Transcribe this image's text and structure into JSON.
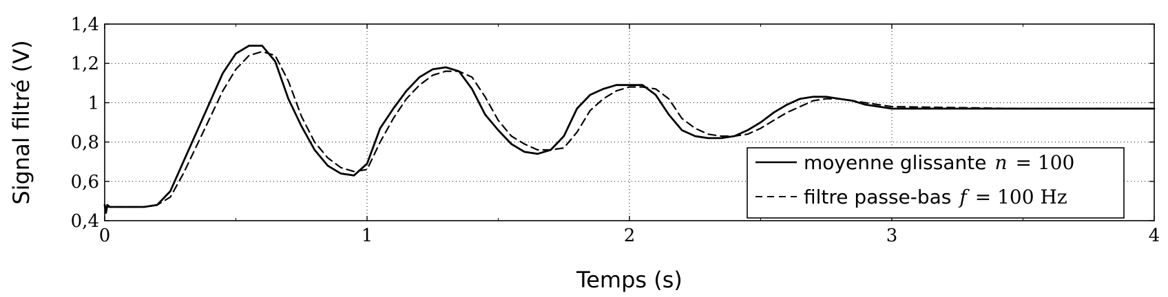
{
  "chart_data": {
    "type": "line",
    "xlabel": "Temps (s)",
    "ylabel": "Signal filtré (V)",
    "xlim": [
      0,
      4
    ],
    "ylim": [
      0.4,
      1.4
    ],
    "xticks": [
      0,
      1,
      2,
      3,
      4
    ],
    "yticks": [
      0.4,
      0.6,
      0.8,
      1.0,
      1.2,
      1.4
    ],
    "xtick_labels": [
      "0",
      "1",
      "2",
      "3",
      "4"
    ],
    "ytick_labels": [
      "0,4",
      "0,6",
      "0,8",
      "1",
      "1,2",
      "1,4"
    ],
    "grid": true,
    "legend_position": "bottom-right",
    "series": [
      {
        "name": "moyenne glissante n = 100",
        "legend_text": "moyenne glissante",
        "legend_var": "n",
        "legend_value": "= 100",
        "style": "solid",
        "color": "#000000",
        "x": [
          0,
          0.005,
          0.01,
          0.02,
          0.05,
          0.1,
          0.15,
          0.2,
          0.25,
          0.3,
          0.35,
          0.4,
          0.45,
          0.5,
          0.55,
          0.6,
          0.65,
          0.7,
          0.75,
          0.8,
          0.85,
          0.9,
          0.95,
          1.0,
          1.05,
          1.1,
          1.15,
          1.2,
          1.25,
          1.3,
          1.35,
          1.4,
          1.45,
          1.5,
          1.55,
          1.6,
          1.65,
          1.7,
          1.75,
          1.8,
          1.85,
          1.9,
          1.95,
          2.0,
          2.05,
          2.1,
          2.15,
          2.2,
          2.25,
          2.3,
          2.35,
          2.4,
          2.45,
          2.5,
          2.55,
          2.6,
          2.65,
          2.7,
          2.75,
          2.8,
          2.85,
          2.9,
          2.95,
          3.0,
          3.5,
          4.0
        ],
        "y": [
          0.48,
          0.44,
          0.48,
          0.47,
          0.47,
          0.47,
          0.47,
          0.48,
          0.55,
          0.7,
          0.85,
          1.0,
          1.15,
          1.25,
          1.29,
          1.29,
          1.21,
          1.02,
          0.88,
          0.76,
          0.68,
          0.64,
          0.63,
          0.69,
          0.87,
          0.97,
          1.06,
          1.13,
          1.17,
          1.18,
          1.16,
          1.07,
          0.94,
          0.86,
          0.79,
          0.75,
          0.74,
          0.76,
          0.83,
          0.97,
          1.04,
          1.07,
          1.09,
          1.09,
          1.09,
          1.04,
          0.94,
          0.86,
          0.83,
          0.82,
          0.82,
          0.83,
          0.86,
          0.9,
          0.95,
          0.99,
          1.02,
          1.03,
          1.03,
          1.02,
          1.01,
          0.99,
          0.98,
          0.97,
          0.97,
          0.97
        ]
      },
      {
        "name": "filtre passe-bas f = 100 Hz",
        "legend_text": "filtre passe-bas",
        "legend_var": "f",
        "legend_value": "= 100 Hz",
        "style": "dashed",
        "color": "#000000",
        "x": [
          0,
          0.05,
          0.1,
          0.15,
          0.2,
          0.25,
          0.3,
          0.35,
          0.4,
          0.45,
          0.5,
          0.55,
          0.6,
          0.65,
          0.7,
          0.75,
          0.8,
          0.85,
          0.9,
          0.95,
          1.0,
          1.05,
          1.1,
          1.15,
          1.2,
          1.25,
          1.3,
          1.35,
          1.4,
          1.45,
          1.5,
          1.55,
          1.6,
          1.65,
          1.7,
          1.75,
          1.8,
          1.85,
          1.9,
          1.95,
          2.0,
          2.05,
          2.1,
          2.15,
          2.2,
          2.25,
          2.3,
          2.35,
          2.4,
          2.45,
          2.5,
          2.55,
          2.6,
          2.65,
          2.7,
          2.75,
          2.8,
          2.85,
          2.9,
          2.95,
          3.0,
          3.5,
          4.0
        ],
        "y": [
          0.47,
          0.47,
          0.47,
          0.47,
          0.48,
          0.52,
          0.64,
          0.78,
          0.92,
          1.06,
          1.17,
          1.24,
          1.26,
          1.24,
          1.11,
          0.93,
          0.8,
          0.72,
          0.67,
          0.65,
          0.66,
          0.8,
          0.92,
          1.02,
          1.09,
          1.14,
          1.16,
          1.16,
          1.13,
          1.03,
          0.91,
          0.83,
          0.79,
          0.76,
          0.76,
          0.77,
          0.85,
          0.96,
          1.02,
          1.06,
          1.08,
          1.08,
          1.07,
          1.02,
          0.92,
          0.87,
          0.84,
          0.83,
          0.83,
          0.84,
          0.87,
          0.91,
          0.95,
          0.98,
          1.01,
          1.02,
          1.02,
          1.01,
          1.0,
          0.99,
          0.98,
          0.97,
          0.97
        ]
      }
    ]
  }
}
